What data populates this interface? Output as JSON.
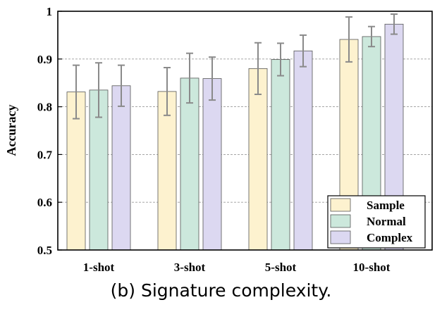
{
  "caption": "(b) Signature complexity.",
  "chart_data": {
    "type": "bar",
    "title": "",
    "xlabel": "",
    "ylabel": "Accuracy",
    "ylim": [
      0.5,
      1.0
    ],
    "yticks": [
      "0.5",
      "0.6",
      "0.7",
      "0.8",
      "0.9",
      "1"
    ],
    "grid": "horizontal dashed",
    "legend_position": "bottom-right",
    "categories": [
      "1-shot",
      "3-shot",
      "5-shot",
      "10-shot"
    ],
    "series": [
      {
        "name": "Sample",
        "color": "#fdf2cf",
        "values": [
          0.831,
          0.832,
          0.88,
          0.941
        ],
        "error": [
          0.056,
          0.05,
          0.054,
          0.047
        ]
      },
      {
        "name": "Normal",
        "color": "#cce8dc",
        "values": [
          0.835,
          0.86,
          0.899,
          0.947
        ],
        "error": [
          0.057,
          0.052,
          0.034,
          0.021
        ]
      },
      {
        "name": "Complex",
        "color": "#dcd8f1",
        "values": [
          0.844,
          0.859,
          0.917,
          0.973
        ],
        "error": [
          0.043,
          0.045,
          0.033,
          0.021
        ]
      }
    ]
  }
}
